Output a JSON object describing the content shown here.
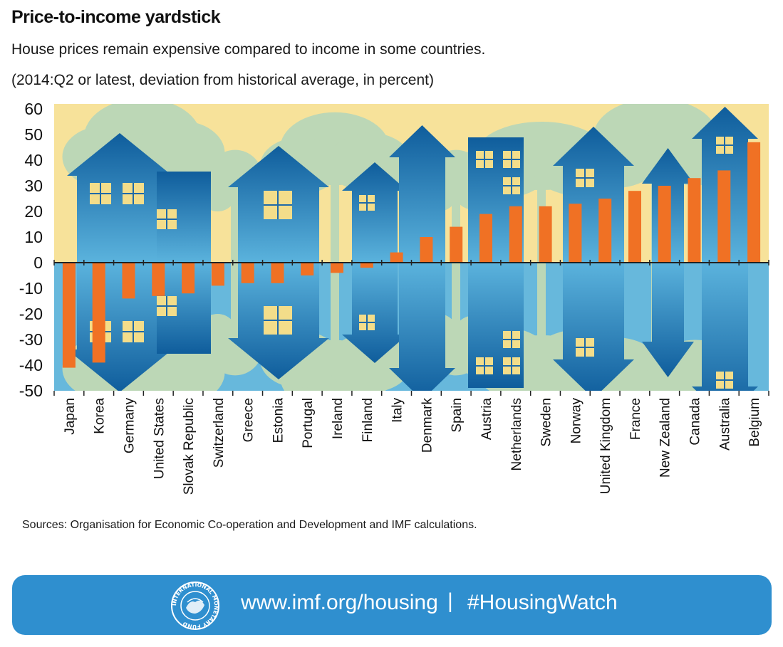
{
  "header": {
    "title": "Price-to-income yardstick",
    "subtitle": "House prices remain expensive compared to income in some countries.",
    "note": "(2014:Q2 or latest, deviation from historical average, in percent)"
  },
  "source": "Sources: Organisation for Economic Co-operation and Development and IMF calculations.",
  "footer": {
    "url": "www.imf.org/housing",
    "separator": "|",
    "hashtag": "#HousingWatch",
    "logo_icon": "imf-seal-icon",
    "logo_ring_text": "INTERNATIONAL MONETARY FUND"
  },
  "colors": {
    "background_upper": "#f7e29a",
    "background_lower": "#67b8dc",
    "bar": "#f07124",
    "house_dark": "#1265a3",
    "house_light": "#5ab4dd",
    "tree": "#bcd7b6",
    "window": "#f3dd8a",
    "footer": "#2f8fcf"
  },
  "chart_data": {
    "type": "bar",
    "categories": [
      "Japan",
      "Korea",
      "Germany",
      "United States",
      "Slovak Republic",
      "Switzerland",
      "Greece",
      "Estonia",
      "Portugal",
      "Ireland",
      "Finland",
      "Italy",
      "Denmark",
      "Spain",
      "Austria",
      "Netherlands",
      "Sweden",
      "Norway",
      "United Kingdom",
      "France",
      "New Zealand",
      "Canada",
      "Australia",
      "Belgium"
    ],
    "values": [
      -41,
      -39,
      -14,
      -13,
      -12,
      -9,
      -8,
      -8,
      -5,
      -4,
      -2,
      4,
      10,
      14,
      19,
      22,
      22,
      23,
      25,
      28,
      30,
      33,
      36,
      47
    ],
    "ylim": [
      -50,
      60
    ],
    "yticks": [
      60,
      50,
      40,
      30,
      20,
      10,
      0,
      -10,
      -20,
      -30,
      -40,
      -50
    ],
    "xlabel": "",
    "ylabel": ""
  }
}
